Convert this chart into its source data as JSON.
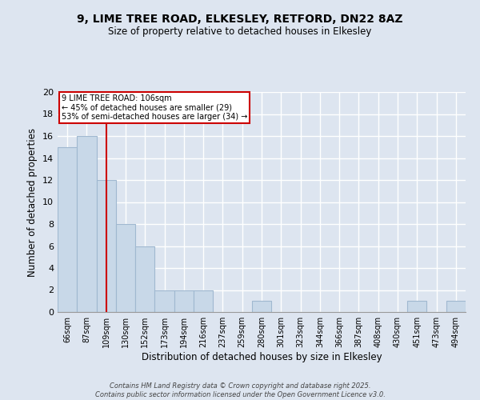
{
  "title_line1": "9, LIME TREE ROAD, ELKESLEY, RETFORD, DN22 8AZ",
  "title_line2": "Size of property relative to detached houses in Elkesley",
  "xlabel": "Distribution of detached houses by size in Elkesley",
  "ylabel": "Number of detached properties",
  "categories": [
    "66sqm",
    "87sqm",
    "109sqm",
    "130sqm",
    "152sqm",
    "173sqm",
    "194sqm",
    "216sqm",
    "237sqm",
    "259sqm",
    "280sqm",
    "301sqm",
    "323sqm",
    "344sqm",
    "366sqm",
    "387sqm",
    "408sqm",
    "430sqm",
    "451sqm",
    "473sqm",
    "494sqm"
  ],
  "values": [
    15,
    16,
    12,
    8,
    6,
    2,
    2,
    2,
    0,
    0,
    1,
    0,
    0,
    0,
    0,
    0,
    0,
    0,
    1,
    0,
    1
  ],
  "bar_color": "#c8d8e8",
  "bar_edgecolor": "#a0b8d0",
  "vline_x": 2,
  "vline_color": "#cc0000",
  "annotation_text": "9 LIME TREE ROAD: 106sqm\n← 45% of detached houses are smaller (29)\n53% of semi-detached houses are larger (34) →",
  "annotation_box_color": "#ffffff",
  "annotation_box_edgecolor": "#cc0000",
  "ylim": [
    0,
    20
  ],
  "yticks": [
    0,
    2,
    4,
    6,
    8,
    10,
    12,
    14,
    16,
    18,
    20
  ],
  "background_color": "#dde5f0",
  "grid_color": "#ffffff",
  "footnote": "Contains HM Land Registry data © Crown copyright and database right 2025.\nContains public sector information licensed under the Open Government Licence v3.0."
}
